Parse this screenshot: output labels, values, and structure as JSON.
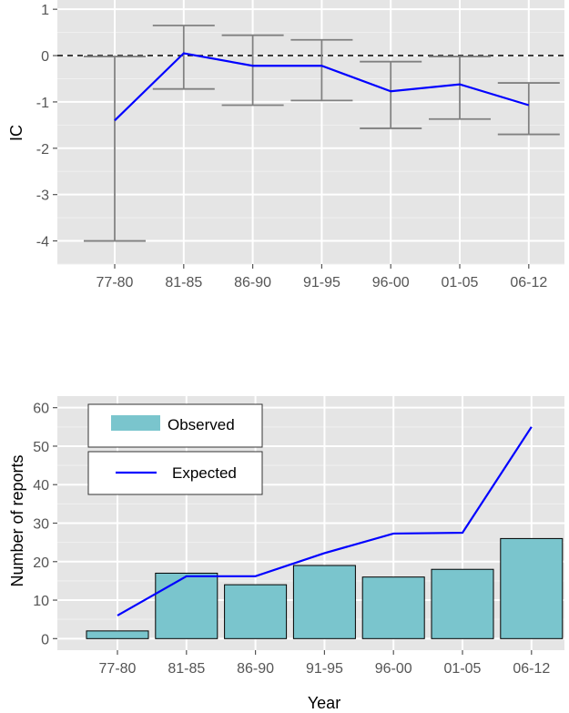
{
  "colors": {
    "panel": "#e5e5e5",
    "grid_major": "#ffffff",
    "grid_minor": "#f0f0f0",
    "line": "#0000ff",
    "bar_fill": "#7ac5cd",
    "bar_stroke": "#000000",
    "errorbar": "#808080",
    "tick_text": "#555555"
  },
  "chart_data": [
    {
      "type": "line",
      "title": "",
      "xlabel": "",
      "ylabel": "IC",
      "categories": [
        "77-80",
        "81-85",
        "86-90",
        "91-95",
        "96-00",
        "01-05",
        "06-12"
      ],
      "ylim": [
        -4.5,
        1.2
      ],
      "yticks": [
        -4,
        -3,
        -2,
        -1,
        0,
        1
      ],
      "grid": true,
      "reference_line": {
        "y": 0,
        "style": "dashed"
      },
      "series": [
        {
          "values": [
            -1.4,
            0.05,
            -0.22,
            -0.22,
            -0.77,
            -0.62,
            -1.07
          ],
          "lower": [
            -4.0,
            -0.72,
            -1.07,
            -0.97,
            -1.57,
            -1.37,
            -1.7
          ],
          "upper": [
            -0.02,
            0.65,
            0.44,
            0.34,
            -0.13,
            -0.02,
            -0.59
          ]
        }
      ]
    },
    {
      "type": "bar",
      "title": "",
      "xlabel": "Year",
      "ylabel": "Number of reports",
      "categories": [
        "77-80",
        "81-85",
        "86-90",
        "91-95",
        "96-00",
        "01-05",
        "06-12"
      ],
      "ylim": [
        -3,
        63
      ],
      "yticks": [
        0,
        10,
        20,
        30,
        40,
        50,
        60
      ],
      "grid": true,
      "legend_position": "top-left",
      "series": [
        {
          "name": "Observed",
          "kind": "bar",
          "values": [
            2,
            17,
            14,
            19,
            16,
            18,
            26
          ]
        },
        {
          "name": "Expected",
          "kind": "line",
          "values": [
            6,
            16.2,
            16.2,
            22.2,
            27.3,
            27.5,
            55
          ]
        }
      ]
    }
  ]
}
